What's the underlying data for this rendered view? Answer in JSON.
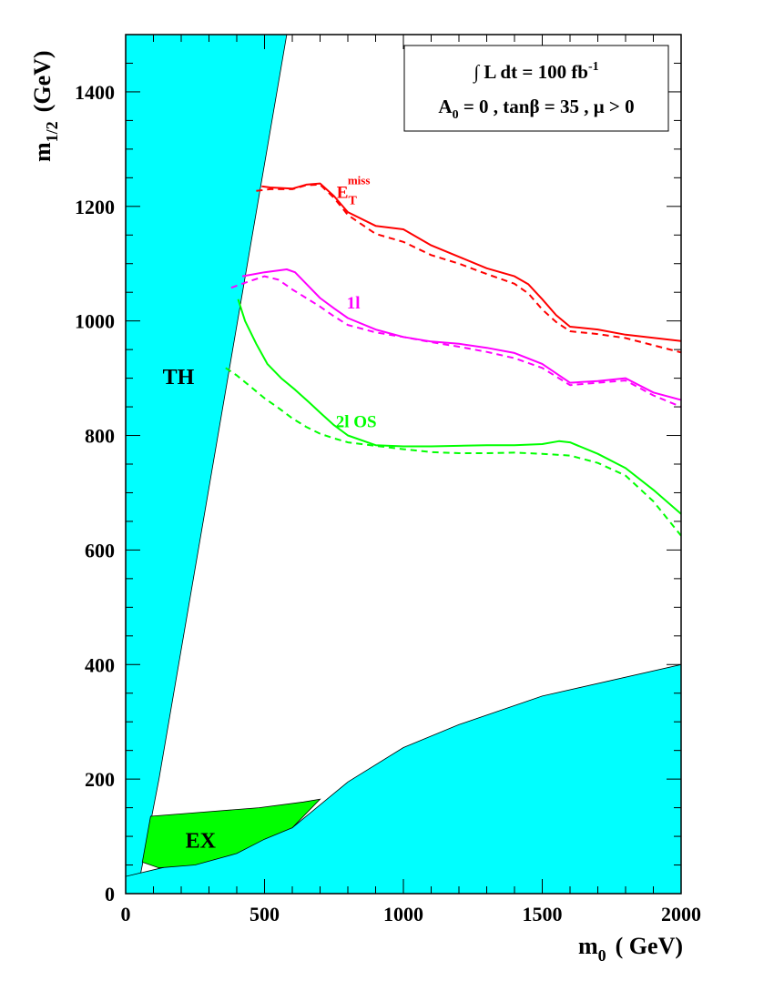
{
  "chart_data": {
    "type": "line",
    "xlabel": {
      "main": "m",
      "sub": "0",
      "unit": "( GeV)"
    },
    "ylabel": {
      "main": "m",
      "sub": "1/2",
      "unit": "(GeV)"
    },
    "xlim": [
      0,
      2000
    ],
    "ylim": [
      0,
      1500
    ],
    "x_ticks": [
      0,
      500,
      1000,
      1500,
      2000
    ],
    "y_ticks": [
      0,
      200,
      400,
      600,
      800,
      1000,
      1200,
      1400
    ],
    "x_tick_labels": [
      "0",
      "500",
      "1000",
      "1500",
      "2000"
    ],
    "y_tick_labels": [
      "0",
      "200",
      "400",
      "600",
      "800",
      "1000",
      "1200",
      "1400"
    ],
    "grid": false,
    "legend": {
      "placement": "top-right",
      "line1": "∫ L dt = 100 fb",
      "line1_sup": "-1",
      "line2": "A",
      "line2_sub": "0",
      "line2_rest": " = 0 ,  tanβ = 35 ,  μ > 0"
    },
    "regions": [
      {
        "label": "TH",
        "color": "#00ffff",
        "label_at": [
          190,
          890
        ],
        "points": [
          [
            0,
            1500
          ],
          [
            580,
            1500
          ],
          [
            120,
            200
          ],
          [
            40,
            0
          ],
          [
            0,
            0
          ]
        ]
      },
      {
        "label": "",
        "color": "#00ffff",
        "points": [
          [
            0,
            0
          ],
          [
            0,
            30
          ],
          [
            130,
            45
          ],
          [
            250,
            60
          ],
          [
            400,
            85
          ],
          [
            600,
            115
          ],
          [
            800,
            195
          ],
          [
            1000,
            255
          ],
          [
            1200,
            295
          ],
          [
            1500,
            345
          ],
          [
            2000,
            400
          ],
          [
            2000,
            0
          ]
        ]
      },
      {
        "label": "EX",
        "color": "#00ff00",
        "label_at": [
          270,
          80
        ],
        "points": [
          [
            60,
            55
          ],
          [
            90,
            135
          ],
          [
            220,
            140
          ],
          [
            480,
            150
          ],
          [
            640,
            160
          ],
          [
            700,
            165
          ],
          [
            600,
            115
          ],
          [
            500,
            95
          ],
          [
            400,
            70
          ],
          [
            250,
            50
          ],
          [
            120,
            45
          ]
        ]
      }
    ],
    "series": [
      {
        "name": "E",
        "name_sub": "T",
        "name_sup": "miss",
        "label_at": [
          820,
          1215
        ],
        "color": "#ff0000",
        "style": "solid",
        "x": [
          490,
          520,
          600,
          650,
          700,
          750,
          800,
          900,
          1000,
          1100,
          1200,
          1300,
          1400,
          1450,
          1500,
          1550,
          1600,
          1700,
          1800,
          2000
        ],
        "y": [
          1235,
          1233,
          1231,
          1238,
          1240,
          1218,
          1190,
          1166,
          1160,
          1132,
          1112,
          1092,
          1078,
          1064,
          1038,
          1010,
          990,
          985,
          976,
          965
        ]
      },
      {
        "name": "",
        "color": "#ff0000",
        "style": "dashed",
        "x": [
          470,
          520,
          600,
          650,
          700,
          750,
          800,
          900,
          1000,
          1100,
          1200,
          1300,
          1400,
          1450,
          1500,
          1550,
          1600,
          1700,
          1800,
          2000
        ],
        "y": [
          1227,
          1230,
          1230,
          1237,
          1238,
          1215,
          1185,
          1152,
          1138,
          1115,
          1100,
          1082,
          1065,
          1048,
          1020,
          998,
          982,
          977,
          970,
          945
        ]
      },
      {
        "name": "1l",
        "label_at": [
          820,
          1022
        ],
        "color": "#ff00ff",
        "style": "solid",
        "x": [
          420,
          500,
          580,
          610,
          660,
          700,
          750,
          800,
          900,
          1000,
          1100,
          1200,
          1300,
          1400,
          1500,
          1600,
          1700,
          1800,
          1900,
          2000
        ],
        "y": [
          1078,
          1085,
          1090,
          1085,
          1060,
          1040,
          1022,
          1005,
          985,
          972,
          964,
          960,
          953,
          944,
          925,
          892,
          895,
          900,
          875,
          862
        ]
      },
      {
        "name": "",
        "color": "#ff00ff",
        "style": "dashed",
        "x": [
          380,
          450,
          500,
          550,
          600,
          650,
          700,
          750,
          800,
          900,
          1000,
          1100,
          1200,
          1300,
          1400,
          1500,
          1600,
          1700,
          1800,
          1900,
          2000
        ],
        "y": [
          1058,
          1070,
          1078,
          1072,
          1055,
          1040,
          1025,
          1008,
          993,
          980,
          972,
          963,
          955,
          946,
          935,
          918,
          888,
          892,
          896,
          870,
          850
        ]
      },
      {
        "name": "2l OS",
        "label_at": [
          830,
          814
        ],
        "color": "#00ff00",
        "style": "solid",
        "x": [
          405,
          430,
          470,
          510,
          560,
          610,
          660,
          700,
          750,
          800,
          900,
          1000,
          1100,
          1200,
          1300,
          1400,
          1500,
          1560,
          1600,
          1700,
          1800,
          1900,
          2000
        ],
        "y": [
          1038,
          1000,
          960,
          925,
          900,
          880,
          858,
          840,
          818,
          800,
          783,
          781,
          781,
          782,
          783,
          783,
          785,
          790,
          788,
          768,
          743,
          705,
          663
        ]
      },
      {
        "name": "",
        "color": "#00ff00",
        "style": "dashed",
        "x": [
          360,
          400,
          450,
          500,
          550,
          600,
          650,
          700,
          750,
          800,
          900,
          1000,
          1100,
          1200,
          1300,
          1400,
          1500,
          1600,
          1700,
          1800,
          1900,
          2000
        ],
        "y": [
          918,
          905,
          885,
          865,
          848,
          830,
          815,
          803,
          795,
          788,
          782,
          776,
          771,
          769,
          769,
          770,
          768,
          765,
          752,
          730,
          685,
          625
        ]
      }
    ]
  }
}
